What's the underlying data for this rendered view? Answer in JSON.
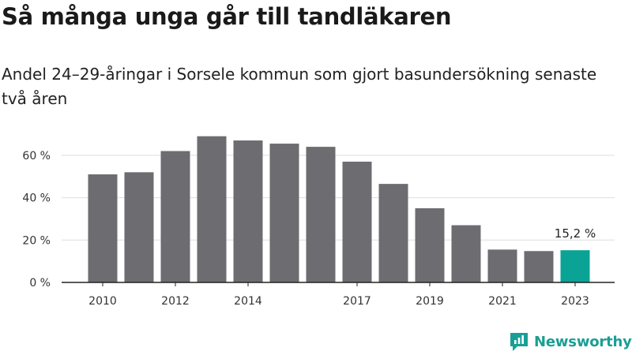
{
  "title": "Så många unga går till tandläkaren",
  "subtitle": "Andel 24–29-åringar i Sorsele kommun som gjort basundersökning senaste två åren",
  "brand": {
    "name": "Newsworthy",
    "color": "#199f95"
  },
  "colors": {
    "bar": "#6d6c70",
    "highlight": "#0aa396",
    "grid": "#dddddd",
    "axis": "#222222"
  },
  "chart_data": {
    "type": "bar",
    "categories": [
      "2010",
      "2011",
      "2012",
      "2013",
      "2014",
      "2015",
      "2016",
      "2017",
      "2018",
      "2019",
      "2020",
      "2021",
      "2022",
      "2023"
    ],
    "tick_labels": [
      "2010",
      "",
      "2012",
      "",
      "2014",
      "",
      "",
      "2017",
      "",
      "2019",
      "",
      "2021",
      "",
      "2023"
    ],
    "values": [
      51,
      52,
      62,
      69,
      67,
      65.5,
      64,
      57,
      46.5,
      35,
      27,
      15.5,
      14.8,
      15.2
    ],
    "highlight_index": 13,
    "highlight_label": "15,2 %",
    "ylim": [
      0,
      70
    ],
    "yticks": [
      0,
      20,
      40,
      60
    ],
    "ytick_labels": [
      "0 %",
      "20 %",
      "40 %",
      "60 %"
    ],
    "grid": true,
    "legend": "none"
  }
}
